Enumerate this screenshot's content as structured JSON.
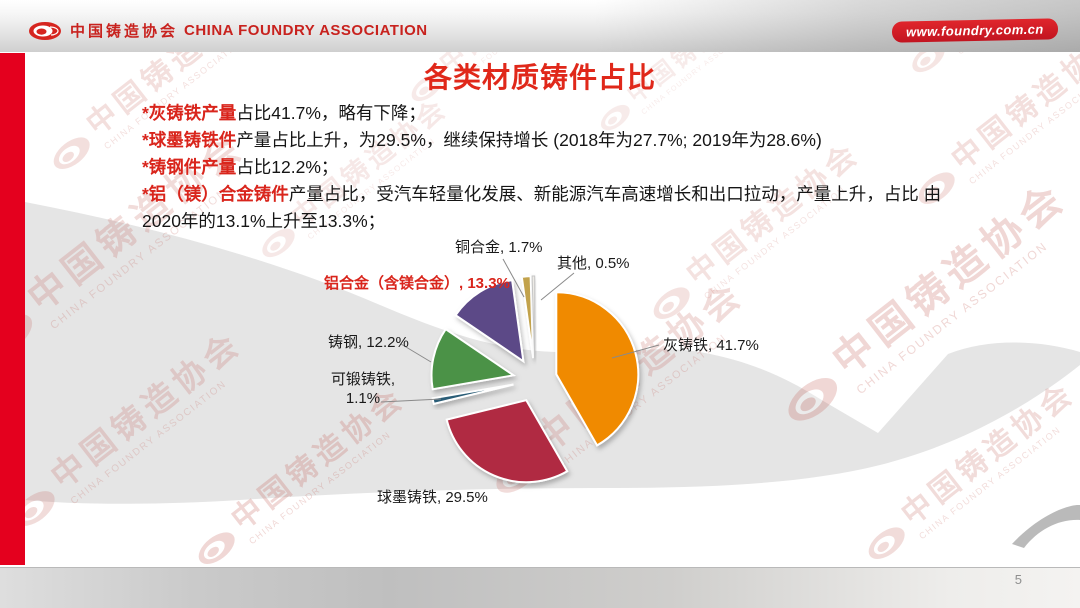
{
  "header": {
    "logo": "cfa-logo",
    "org_cn": "中国铸造协会",
    "org_en": "CHINA FOUNDRY ASSOCIATION",
    "website": "www.foundry.com.cn"
  },
  "slide": {
    "title": "各类材质铸件占比",
    "bullets": [
      {
        "lead": "*灰铸铁产量",
        "text": "占比41.7%，略有下降；"
      },
      {
        "lead": "*球墨铸铁件",
        "text": "产量占比上升，为29.5%，继续保持增长 (2018年为27.7%; 2019年为28.6%)"
      },
      {
        "lead": "*铸钢件产量",
        "text": "占比12.2%；"
      },
      {
        "lead": "*铝（镁）合金铸件",
        "text": "产量占比，受汽车轻量化发展、新能源汽车高速增长和出口拉动，产量上升，占比 由2020年的13.1%上升至13.3%；"
      }
    ],
    "page_number": "5"
  },
  "watermark": {
    "text_cn": "中国铸造协会",
    "text_en": "CHINA FOUNDRY ASSOCIATION"
  },
  "chart_data": {
    "type": "pie",
    "title": "各类材质铸件占比",
    "unit": "%",
    "start_angle_deg": 0,
    "direction": "clockwise",
    "exploded": true,
    "slices": [
      {
        "label": "灰铸铁",
        "value": 41.7,
        "color": "#F08A00",
        "callout": "灰铸铁, 41.7%"
      },
      {
        "label": "球墨铸铁",
        "value": 29.5,
        "color": "#B02942",
        "callout": "球墨铸铁, 29.5%"
      },
      {
        "label": "可锻铸铁",
        "value": 1.1,
        "color": "#2B5D77",
        "callout": "可锻铸铁, 1.1%"
      },
      {
        "label": "铸钢",
        "value": 12.2,
        "color": "#4C9246",
        "callout": "铸钢, 12.2%"
      },
      {
        "label": "铝合金（含镁合金）",
        "value": 13.3,
        "color": "#5B4A87",
        "callout": "铝合金（含镁合金）, 13.3%"
      },
      {
        "label": "铜合金",
        "value": 1.7,
        "color": "#C2A24B",
        "callout": "铜合金, 1.7%"
      },
      {
        "label": "其他",
        "value": 0.5,
        "color": "#EDEBE6",
        "callout": "其他, 0.5%"
      }
    ]
  }
}
